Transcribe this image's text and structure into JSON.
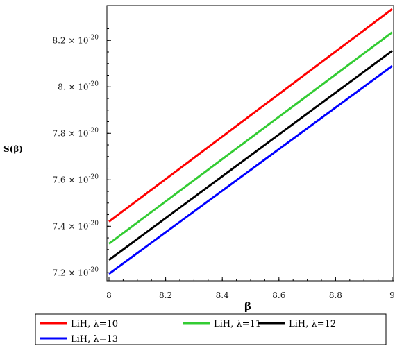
{
  "chart_data": {
    "type": "line",
    "title": "",
    "xlabel": "β",
    "ylabel": "S(β)",
    "xlim": [
      8,
      9
    ],
    "ylim": [
      7.18e-20,
      8.35e-20
    ],
    "x_ticks": [
      {
        "value": 8,
        "label": "8"
      },
      {
        "value": 8.2,
        "label": "8.2"
      },
      {
        "value": 8.4,
        "label": "8.4"
      },
      {
        "value": 8.6,
        "label": "8.6"
      },
      {
        "value": 8.8,
        "label": "8.8"
      },
      {
        "value": 9,
        "label": "9"
      }
    ],
    "y_ticks": [
      {
        "value": 7.2e-20,
        "mantissa": "7.2",
        "times": "×",
        "base": "10",
        "exponent": "-20"
      },
      {
        "value": 7.4e-20,
        "mantissa": "7.4",
        "times": "×",
        "base": "10",
        "exponent": "-20"
      },
      {
        "value": 7.6e-20,
        "mantissa": "7.6",
        "times": "×",
        "base": "10",
        "exponent": "-20"
      },
      {
        "value": 7.8e-20,
        "mantissa": "7.8",
        "times": "×",
        "base": "10",
        "exponent": "-20"
      },
      {
        "value": 8e-20,
        "mantissa": "8.",
        "times": "×",
        "base": "10",
        "exponent": "-20"
      },
      {
        "value": 8.2e-20,
        "mantissa": "8.2",
        "times": "×",
        "base": "10",
        "exponent": "-20"
      }
    ],
    "series": [
      {
        "name": "LiH, λ=10",
        "color": "#ff0000",
        "x": [
          8,
          9
        ],
        "y": [
          7.42e-20,
          8.335e-20
        ]
      },
      {
        "name": "LiH, λ=11",
        "color": "#33cc33",
        "x": [
          8,
          9
        ],
        "y": [
          7.325e-20,
          8.235e-20
        ]
      },
      {
        "name": "LiH, λ=12",
        "color": "#000000",
        "x": [
          8,
          9
        ],
        "y": [
          7.255e-20,
          8.155e-20
        ]
      },
      {
        "name": "LiH, λ=13",
        "color": "#0000ff",
        "x": [
          8,
          9
        ],
        "y": [
          7.195e-20,
          8.09e-20
        ]
      }
    ],
    "grid": false,
    "legend_position": "bottom"
  }
}
